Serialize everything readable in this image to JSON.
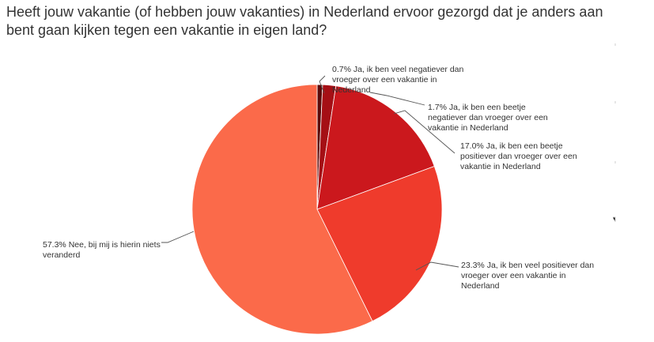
{
  "chart_data": {
    "type": "pie",
    "title": "Heeft jouw vakantie (of hebben jouw vakanties) in Nederland ervoor gezorgd dat je anders aan bent gaan kijken tegen een vakantie in eigen land?",
    "slices": [
      {
        "label": "0.7% Ja, ik ben veel negatiever dan vroeger over een vakantie in Nederland",
        "lines": [
          "0.7% Ja, ik ben veel negatiever dan",
          "vroeger over een vakantie in",
          "Nederland"
        ],
        "value": 0.7,
        "color": "#5c0a0a"
      },
      {
        "label": "1.7% Ja, ik ben een beetje negatiever dan vroeger over een vakantie in Nederland",
        "lines": [
          "1.7% Ja, ik ben een beetje",
          "negatiever dan vroeger over een",
          "vakantie in Nederland"
        ],
        "value": 1.7,
        "color": "#a50f15"
      },
      {
        "label": "17.0% Ja, ik ben een beetje positiever dan vroeger over een vakantie in Nederland",
        "lines": [
          "17.0% Ja, ik ben een beetje",
          "positiever dan vroeger over een",
          "vakantie in Nederland"
        ],
        "value": 17.0,
        "color": "#cb181d"
      },
      {
        "label": "23.3% Ja, ik ben veel positiever dan vroeger over een vakantie in Nederland",
        "lines": [
          "23.3% Ja, ik ben veel positiever dan",
          "vroeger over een vakantie in",
          "Nederland"
        ],
        "value": 23.3,
        "color": "#ef3b2c"
      },
      {
        "label": "57.3% Nee, bij mij is hierin niets veranderd",
        "lines": [
          "57.3% Nee, bij mij is hierin niets",
          "veranderd"
        ],
        "value": 57.3,
        "color": "#fb6a4a"
      }
    ]
  }
}
